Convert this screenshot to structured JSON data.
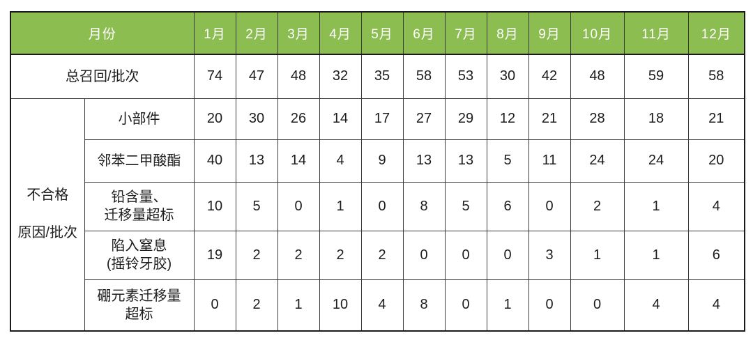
{
  "chart_data": {
    "type": "table",
    "corner_label": "月份",
    "categories": [
      "1月",
      "2月",
      "3月",
      "4月",
      "5月",
      "6月",
      "7月",
      "8月",
      "9月",
      "10月",
      "11月",
      "12月"
    ],
    "total_row": {
      "label": "总召回/批次",
      "values": [
        74,
        47,
        48,
        32,
        35,
        58,
        53,
        30,
        42,
        48,
        59,
        58
      ]
    },
    "group_label": "不合格\n\n原因/批次",
    "series": [
      {
        "name": "小部件",
        "values": [
          20,
          30,
          26,
          14,
          17,
          27,
          29,
          12,
          21,
          28,
          18,
          21
        ]
      },
      {
        "name": "邻苯二甲酸酯",
        "values": [
          40,
          13,
          14,
          4,
          9,
          13,
          13,
          5,
          11,
          24,
          24,
          20
        ]
      },
      {
        "name": "铅含量、\n迁移量超标",
        "values": [
          10,
          5,
          0,
          1,
          0,
          8,
          5,
          6,
          0,
          2,
          1,
          4
        ]
      },
      {
        "name": "陷入窒息\n(摇铃牙胶)",
        "values": [
          19,
          2,
          2,
          2,
          2,
          0,
          0,
          0,
          3,
          1,
          1,
          6
        ]
      },
      {
        "name": "硼元素迁移量\n超标",
        "values": [
          0,
          2,
          1,
          10,
          4,
          8,
          0,
          1,
          0,
          0,
          4,
          4
        ]
      }
    ],
    "legend": "none",
    "grid": "full-borders"
  },
  "colors": {
    "header_bg": "#8cbd50",
    "header_text": "#ffffff",
    "border_inner": "#3a3a3a",
    "border_outer": "#1a1a1a",
    "body_text": "#1c1c1c"
  }
}
